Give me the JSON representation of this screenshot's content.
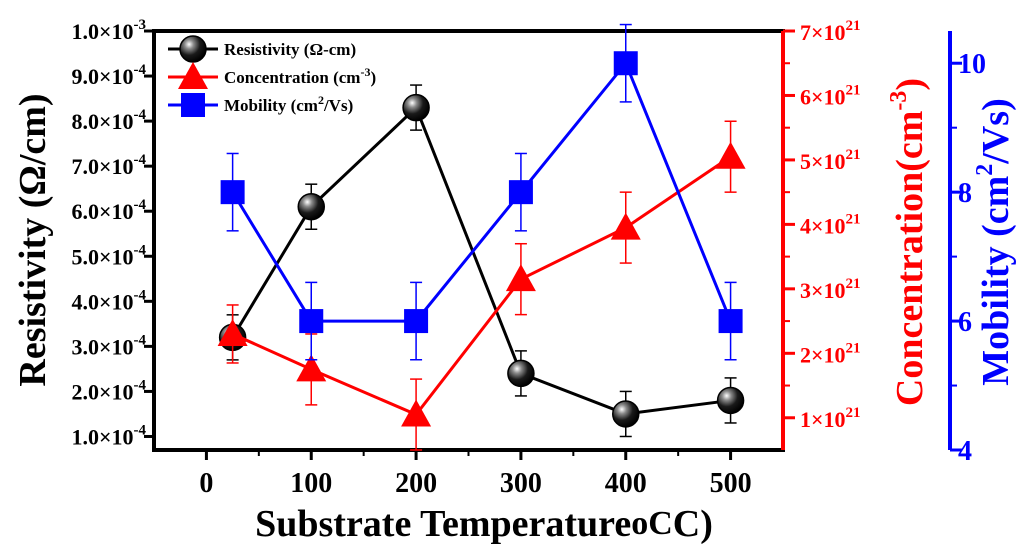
{
  "chart_data": {
    "type": "line",
    "title": "",
    "xlabel": "Substrate Temperature",
    "xlabel_unit": "oC",
    "x_ticks": [
      "0",
      "100",
      "200",
      "300",
      "400",
      "500"
    ],
    "xlim": [
      -50,
      550
    ],
    "axes": {
      "left": {
        "label": "Resistivity (Ω/cm)",
        "ylim": [
          7e-05,
          0.001
        ],
        "color": "#000000",
        "ticks": [
          {
            "v": 0.0001,
            "mant": "1.0×10",
            "exp": "-4"
          },
          {
            "v": 0.0002,
            "mant": "2.0×10",
            "exp": "-4"
          },
          {
            "v": 0.0003,
            "mant": "3.0×10",
            "exp": "-4"
          },
          {
            "v": 0.0004,
            "mant": "4.0×10",
            "exp": "-4"
          },
          {
            "v": 0.0005,
            "mant": "5.0×10",
            "exp": "-4"
          },
          {
            "v": 0.0006,
            "mant": "6.0×10",
            "exp": "-4"
          },
          {
            "v": 0.0007,
            "mant": "7.0×10",
            "exp": "-4"
          },
          {
            "v": 0.0008,
            "mant": "8.0×10",
            "exp": "-4"
          },
          {
            "v": 0.0009,
            "mant": "9.0×10",
            "exp": "-4"
          },
          {
            "v": 0.001,
            "mant": "1.0×10",
            "exp": "-3"
          }
        ]
      },
      "right1": {
        "label": "Concentration(cm",
        "label_exp": "-3",
        "label_end": ")",
        "ylim": [
          5e+20,
          7e+21
        ],
        "color": "#ff0000",
        "ticks": [
          {
            "v": 1e+21,
            "mant": "1×10",
            "exp": "21"
          },
          {
            "v": 2e+21,
            "mant": "2×10",
            "exp": "21"
          },
          {
            "v": 3e+21,
            "mant": "3×10",
            "exp": "21"
          },
          {
            "v": 4e+21,
            "mant": "4×10",
            "exp": "21"
          },
          {
            "v": 5e+21,
            "mant": "5×10",
            "exp": "21"
          },
          {
            "v": 6e+21,
            "mant": "6×10",
            "exp": "21"
          },
          {
            "v": 7e+21,
            "mant": "7×10",
            "exp": "21"
          }
        ]
      },
      "right2": {
        "label": "Mobility (cm",
        "label_exp": "2",
        "label_end": "/Vs)",
        "ylim": [
          4,
          10.5
        ],
        "color": "#0000ff",
        "ticks": [
          {
            "v": 4,
            "t": "4"
          },
          {
            "v": 6,
            "t": "6"
          },
          {
            "v": 8,
            "t": "8"
          },
          {
            "v": 10,
            "t": "10"
          }
        ]
      }
    },
    "series": [
      {
        "name": "Resistivity (Ω-cm)",
        "axis": "left",
        "color": "#000000",
        "marker": "sphere",
        "x": [
          25,
          100,
          200,
          300,
          400,
          500
        ],
        "y": [
          0.00032,
          0.00061,
          0.00083,
          0.00024,
          0.00015,
          0.00018
        ],
        "err": [
          5e-05,
          5e-05,
          5e-05,
          5e-05,
          5e-05,
          5e-05
        ]
      },
      {
        "name": "Concentration (cm",
        "name_exp": "-3",
        "name_end": ")",
        "axis": "right1",
        "color": "#ff0000",
        "marker": "triangle",
        "x": [
          25,
          100,
          200,
          300,
          400,
          500
        ],
        "y": [
          2.3e+21,
          1.75e+21,
          1.05e+21,
          3.15e+21,
          3.95e+21,
          5.05e+21
        ],
        "err": [
          4.5e+20,
          5.5e+20,
          5.5e+20,
          5.5e+20,
          5.5e+20,
          5.5e+20
        ]
      },
      {
        "name": "Mobility (cm",
        "name_exp": "2",
        "name_end": "/Vs)",
        "axis": "right2",
        "color": "#0000ff",
        "marker": "square",
        "x": [
          25,
          100,
          200,
          300,
          400,
          500
        ],
        "y": [
          8.0,
          6.0,
          6.0,
          8.0,
          10.0,
          6.0
        ],
        "err": [
          0.6,
          0.6,
          0.6,
          0.6,
          0.6,
          0.6
        ]
      }
    ],
    "legend_position": "top-left"
  }
}
